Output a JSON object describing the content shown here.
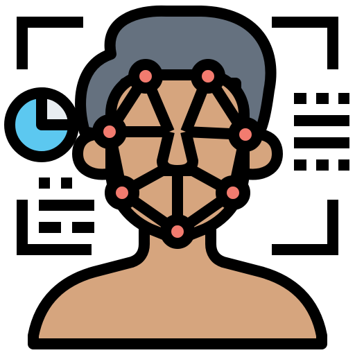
{
  "icon": {
    "name": "face-recognition-icon",
    "colors": {
      "outline": "#000000",
      "skin": "#d6a57e",
      "hair": "#65717f",
      "node": "#f27b6f",
      "pie_fill": "#5cc8f0",
      "pie_slice": "#e8edf1",
      "background": "#ffffff"
    },
    "parts": [
      "scan-frame",
      "pie-chart",
      "data-lines",
      "head",
      "face-mesh"
    ]
  }
}
